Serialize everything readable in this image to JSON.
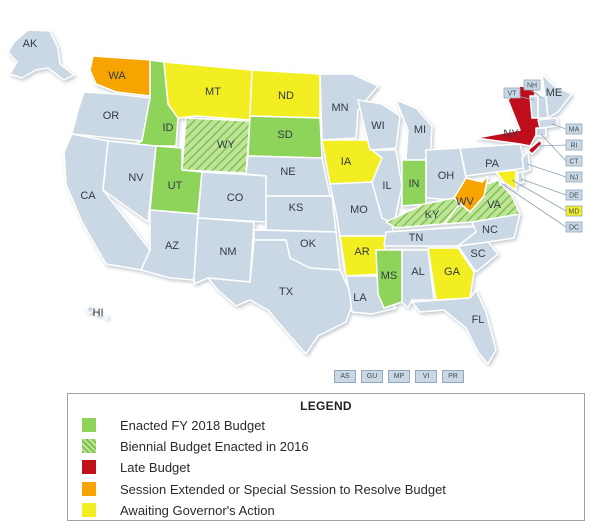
{
  "colors": {
    "enacted": "#8ed35a",
    "biennial_base": "#bfe39a",
    "biennial_stripe": "#7cc44a",
    "late": "#c0111a",
    "extended": "#f7a400",
    "awaiting": "#f2ee22",
    "none": "#c9d8e4"
  },
  "map": {
    "states": [
      {
        "code": "AK",
        "label": "AK",
        "status": "none"
      },
      {
        "code": "HI",
        "label": "HI",
        "status": "none"
      },
      {
        "code": "WA",
        "label": "WA",
        "status": "extended"
      },
      {
        "code": "OR",
        "label": "OR",
        "status": "none"
      },
      {
        "code": "CA",
        "label": "CA",
        "status": "none"
      },
      {
        "code": "ID",
        "label": "ID",
        "status": "enacted"
      },
      {
        "code": "NV",
        "label": "NV",
        "status": "none"
      },
      {
        "code": "MT",
        "label": "MT",
        "status": "awaiting"
      },
      {
        "code": "WY",
        "label": "WY",
        "status": "biennial"
      },
      {
        "code": "UT",
        "label": "UT",
        "status": "enacted"
      },
      {
        "code": "AZ",
        "label": "AZ",
        "status": "none"
      },
      {
        "code": "CO",
        "label": "CO",
        "status": "none"
      },
      {
        "code": "NM",
        "label": "NM",
        "status": "none"
      },
      {
        "code": "ND",
        "label": "ND",
        "status": "awaiting"
      },
      {
        "code": "SD",
        "label": "SD",
        "status": "enacted"
      },
      {
        "code": "NE",
        "label": "NE",
        "status": "none"
      },
      {
        "code": "KS",
        "label": "KS",
        "status": "none"
      },
      {
        "code": "OK",
        "label": "OK",
        "status": "none"
      },
      {
        "code": "TX",
        "label": "TX",
        "status": "none"
      },
      {
        "code": "MN",
        "label": "MN",
        "status": "none"
      },
      {
        "code": "IA",
        "label": "IA",
        "status": "awaiting"
      },
      {
        "code": "MO",
        "label": "MO",
        "status": "none"
      },
      {
        "code": "AR",
        "label": "AR",
        "status": "awaiting"
      },
      {
        "code": "LA",
        "label": "LA",
        "status": "none"
      },
      {
        "code": "WI",
        "label": "WI",
        "status": "none"
      },
      {
        "code": "IL",
        "label": "IL",
        "status": "none"
      },
      {
        "code": "MI",
        "label": "MI",
        "status": "none"
      },
      {
        "code": "IN",
        "label": "IN",
        "status": "enacted"
      },
      {
        "code": "OH",
        "label": "OH",
        "status": "none"
      },
      {
        "code": "KY",
        "label": "KY",
        "status": "biennial"
      },
      {
        "code": "TN",
        "label": "TN",
        "status": "none"
      },
      {
        "code": "MS",
        "label": "MS",
        "status": "enacted"
      },
      {
        "code": "AL",
        "label": "AL",
        "status": "none"
      },
      {
        "code": "GA",
        "label": "GA",
        "status": "awaiting"
      },
      {
        "code": "FL",
        "label": "FL",
        "status": "none"
      },
      {
        "code": "SC",
        "label": "SC",
        "status": "none"
      },
      {
        "code": "NC",
        "label": "NC",
        "status": "none"
      },
      {
        "code": "VA",
        "label": "VA",
        "status": "biennial"
      },
      {
        "code": "WV",
        "label": "WV",
        "status": "extended"
      },
      {
        "code": "PA",
        "label": "PA",
        "status": "none"
      },
      {
        "code": "NY",
        "label": "NY",
        "status": "late"
      },
      {
        "code": "ME",
        "label": "ME",
        "status": "none"
      },
      {
        "code": "VT",
        "label": "VT",
        "status": "none"
      },
      {
        "code": "NH",
        "label": "NH",
        "status": "none"
      },
      {
        "code": "MA",
        "label": "MA",
        "status": "none"
      },
      {
        "code": "RI",
        "label": "RI",
        "status": "late"
      },
      {
        "code": "CT",
        "label": "CT",
        "status": "none"
      },
      {
        "code": "NJ",
        "label": "NJ",
        "status": "none"
      },
      {
        "code": "DE",
        "label": "DE",
        "status": "none"
      },
      {
        "code": "MD",
        "label": "MD",
        "status": "awaiting"
      },
      {
        "code": "DC",
        "label": "DC",
        "status": "none"
      }
    ],
    "territories": [
      "AS",
      "GU",
      "MP",
      "VI",
      "PR"
    ]
  },
  "legend": {
    "title": "LEGEND",
    "items": [
      {
        "label": "Enacted FY 2018 Budget",
        "status": "enacted"
      },
      {
        "label": "Biennial Budget Enacted in 2016",
        "status": "biennial"
      },
      {
        "label": "Late Budget",
        "status": "late"
      },
      {
        "label": "Session Extended or Special Session to Resolve Budget",
        "status": "extended"
      },
      {
        "label": "Awaiting Governor's Action",
        "status": "awaiting"
      }
    ]
  }
}
